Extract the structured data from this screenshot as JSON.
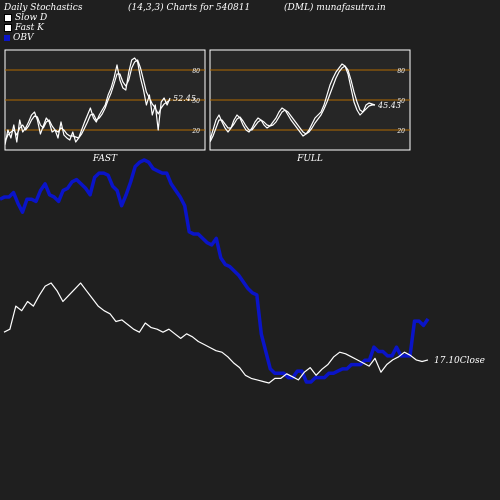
{
  "header": {
    "left": "Daily Stochastics",
    "mid": "(14,3,3) Charts for 540811",
    "right": "(DML) munafasutra.in"
  },
  "legend": {
    "items": [
      {
        "label": "Slow  D",
        "color": "#ffffff"
      },
      {
        "label": "Fast K",
        "color": "#ffffff"
      },
      {
        "label": "OBV",
        "color": "#0a14c8"
      }
    ]
  },
  "chart_data": [
    {
      "type": "line",
      "panel": "FAST",
      "title": "FAST",
      "ylim": [
        0,
        100
      ],
      "levels": [
        20,
        50,
        80
      ],
      "level_labels": [
        "20",
        "50",
        "80"
      ],
      "last_value_label": "52.45",
      "series": [
        {
          "values": [
            5,
            20,
            12,
            25,
            8,
            30,
            18,
            22,
            28,
            35,
            38,
            30,
            16,
            24,
            32,
            28,
            18,
            20,
            12,
            28,
            15,
            12,
            10,
            18,
            8,
            12,
            20,
            28,
            35,
            42,
            32,
            28,
            35,
            40,
            45,
            55,
            62,
            72,
            85,
            70,
            62,
            60,
            78,
            90,
            92,
            88,
            72,
            60,
            45,
            55,
            35,
            45,
            20,
            48,
            52,
            45,
            52
          ]
        },
        {
          "values": [
            8,
            15,
            18,
            20,
            15,
            22,
            25,
            20,
            24,
            30,
            34,
            33,
            25,
            22,
            28,
            30,
            24,
            20,
            18,
            22,
            20,
            16,
            14,
            14,
            13,
            12,
            16,
            22,
            28,
            35,
            36,
            30,
            32,
            36,
            42,
            50,
            57,
            66,
            76,
            76,
            68,
            64,
            70,
            82,
            88,
            90,
            82,
            70,
            58,
            52,
            46,
            42,
            36,
            42,
            46,
            48,
            50
          ]
        }
      ]
    },
    {
      "type": "line",
      "panel": "FULL",
      "title": "FULL",
      "ylim": [
        0,
        100
      ],
      "levels": [
        20,
        50,
        80
      ],
      "level_labels": [
        "20",
        "50",
        "80"
      ],
      "last_value_label": "45.43",
      "series": [
        {
          "values": [
            10,
            20,
            30,
            35,
            28,
            22,
            18,
            22,
            30,
            35,
            32,
            25,
            20,
            18,
            22,
            28,
            32,
            30,
            25,
            22,
            24,
            28,
            32,
            38,
            42,
            40,
            35,
            30,
            26,
            22,
            18,
            14,
            16,
            20,
            26,
            32,
            35,
            38,
            45,
            55,
            65,
            72,
            78,
            82,
            86,
            84,
            76,
            62,
            48,
            40,
            35,
            38,
            45,
            47,
            46,
            45
          ]
        },
        {
          "values": [
            8,
            14,
            22,
            30,
            30,
            26,
            22,
            22,
            26,
            31,
            33,
            29,
            24,
            20,
            20,
            24,
            28,
            30,
            28,
            25,
            24,
            25,
            28,
            33,
            38,
            40,
            38,
            34,
            30,
            26,
            22,
            18,
            16,
            18,
            22,
            27,
            31,
            35,
            41,
            48,
            56,
            64,
            72,
            78,
            82,
            84,
            80,
            70,
            58,
            48,
            40,
            38,
            41,
            44,
            45,
            45
          ]
        }
      ]
    },
    {
      "type": "line",
      "panel": "price-obv",
      "series": [
        {
          "name": "OBV",
          "values": [
            8,
            9,
            9,
            11,
            6,
            2,
            8,
            8,
            7,
            12,
            15,
            10,
            9,
            7,
            12,
            13,
            16,
            17,
            15,
            13,
            10,
            18,
            20,
            20,
            19,
            14,
            12,
            5,
            10,
            16,
            23,
            25,
            26,
            25,
            22,
            21,
            20,
            20,
            15,
            12,
            9,
            5,
            -7,
            -8,
            -8,
            -10,
            -12,
            -13,
            -10,
            -19,
            -22,
            -23,
            -25,
            -27,
            -30,
            -33,
            -35,
            -36,
            -54,
            -62,
            -70,
            -72,
            -72,
            -72,
            -74,
            -74,
            -71,
            -71,
            -76,
            -76,
            -74,
            -74,
            -74,
            -72,
            -72,
            -71,
            -70,
            -70,
            -68,
            -68,
            -68,
            -66,
            -66,
            -60,
            -62,
            -62,
            -64,
            -64,
            -60,
            -64,
            -64,
            -64,
            -48,
            -48,
            -50,
            -47
          ]
        },
        {
          "name": "Close",
          "values": [
            17.28,
            17.3,
            17.45,
            17.42,
            17.48,
            17.45,
            17.52,
            17.58,
            17.6,
            17.55,
            17.48,
            17.52,
            17.56,
            17.6,
            17.55,
            17.5,
            17.45,
            17.42,
            17.4,
            17.35,
            17.36,
            17.33,
            17.3,
            17.28,
            17.34,
            17.31,
            17.3,
            17.28,
            17.3,
            17.27,
            17.24,
            17.27,
            17.25,
            17.22,
            17.2,
            17.18,
            17.16,
            17.15,
            17.12,
            17.08,
            17.05,
            17.0,
            16.98,
            16.97,
            16.96,
            16.95,
            16.98,
            16.98,
            17.01,
            16.99,
            16.97,
            17.02,
            17.05,
            17.0,
            17.04,
            17.07,
            17.12,
            17.15,
            17.14,
            17.12,
            17.1,
            17.08,
            17.06,
            17.11,
            17.02,
            17.07,
            17.1,
            17.12,
            17.15,
            17.13,
            17.1,
            17.09,
            17.1
          ]
        }
      ],
      "last_value_label": "17.10Close"
    }
  ],
  "colors": {
    "background": "#1f1f1f",
    "panel": "#262626",
    "level_line": "#b36b00",
    "stoch_line": "#ffffff",
    "obv": "#0a14c8",
    "close": "#ffffff"
  }
}
